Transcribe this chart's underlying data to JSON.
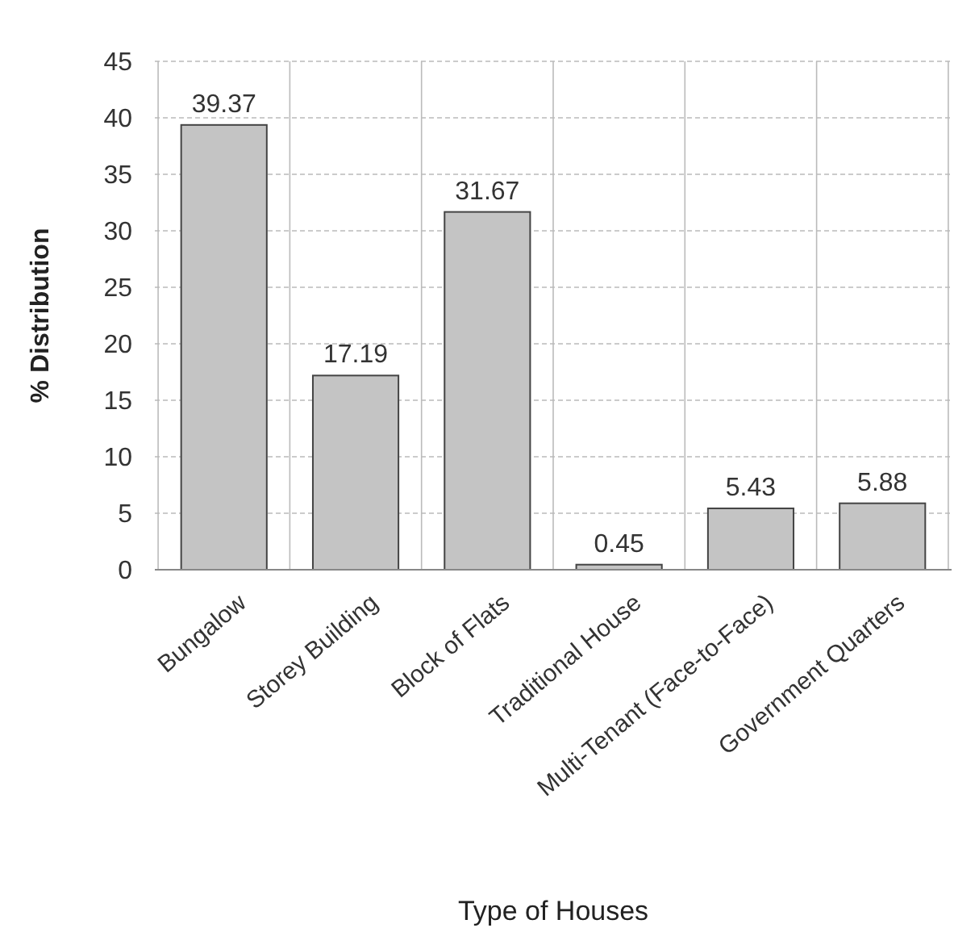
{
  "chart_data": {
    "type": "bar",
    "xlabel": "Type of Houses",
    "ylabel": "% Distribution",
    "categories": [
      "Bungalow",
      "Storey Building",
      "Block of Flats",
      "Traditional House",
      "Multi-Tenant (Face-to-Face)",
      "Government Quarters"
    ],
    "values": [
      39.37,
      17.19,
      31.67,
      0.45,
      5.43,
      5.88
    ],
    "color": "#c4c4c4",
    "ylim": [
      0,
      45
    ],
    "yticks": [
      0,
      5,
      10,
      15,
      20,
      25,
      30,
      35,
      40,
      45
    ],
    "grid": true,
    "data_labels": true
  }
}
